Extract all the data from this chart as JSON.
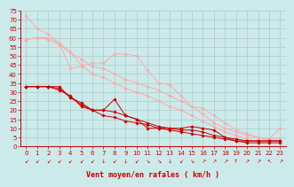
{
  "background_color": "#cceaea",
  "grid_color": "#aacccc",
  "xlabel": "Vent moyen/en rafales ( km/h )",
  "xlabel_color": "#cc0000",
  "xlabel_fontsize": 6,
  "tick_color": "#cc0000",
  "tick_fontsize": 5,
  "xlim": [
    -0.5,
    23.5
  ],
  "ylim": [
    0,
    75
  ],
  "yticks": [
    0,
    5,
    10,
    15,
    20,
    25,
    30,
    35,
    40,
    45,
    50,
    55,
    60,
    65,
    70,
    75
  ],
  "xticks": [
    0,
    1,
    2,
    3,
    4,
    5,
    6,
    7,
    8,
    9,
    10,
    11,
    12,
    13,
    14,
    15,
    16,
    17,
    18,
    19,
    20,
    21,
    22,
    23
  ],
  "series_light": [
    {
      "x": [
        0,
        1,
        2,
        3,
        4,
        5,
        6,
        7,
        8,
        9,
        10,
        11,
        12,
        13,
        14,
        15,
        16,
        17,
        18,
        19,
        20,
        21,
        22,
        23
      ],
      "y": [
        59,
        60,
        60,
        57,
        43,
        44,
        46,
        46,
        51,
        51,
        50,
        42,
        35,
        34,
        28,
        22,
        21,
        17,
        13,
        9,
        7,
        5,
        4,
        10
      ]
    },
    {
      "x": [
        0,
        1,
        2,
        3,
        4,
        5,
        6,
        7,
        8,
        9,
        10,
        11,
        12,
        13,
        14,
        15,
        16,
        17,
        18,
        19,
        20,
        21,
        22,
        23
      ],
      "y": [
        72,
        65,
        62,
        57,
        52,
        48,
        44,
        43,
        40,
        37,
        35,
        33,
        31,
        28,
        25,
        22,
        18,
        13,
        10,
        8,
        6,
        5,
        4,
        4
      ]
    },
    {
      "x": [
        0,
        1,
        2,
        3,
        4,
        5,
        6,
        7,
        8,
        9,
        10,
        11,
        12,
        13,
        14,
        15,
        16,
        17,
        18,
        19,
        20,
        21,
        22,
        23
      ],
      "y": [
        59,
        60,
        59,
        56,
        52,
        45,
        40,
        38,
        35,
        32,
        30,
        28,
        25,
        22,
        20,
        17,
        14,
        11,
        8,
        6,
        4,
        3,
        3,
        3
      ]
    }
  ],
  "series_dark": [
    {
      "x": [
        0,
        1,
        2,
        3,
        4,
        5,
        6,
        7,
        8,
        9,
        10,
        11,
        12,
        13,
        14,
        15,
        16,
        17,
        18,
        19,
        20,
        21,
        22,
        23
      ],
      "y": [
        33,
        33,
        33,
        33,
        27,
        24,
        20,
        20,
        26,
        17,
        15,
        10,
        10,
        10,
        10,
        11,
        10,
        9,
        5,
        3,
        3,
        3,
        3,
        3
      ]
    },
    {
      "x": [
        0,
        1,
        2,
        3,
        4,
        5,
        6,
        7,
        8,
        9,
        10,
        11,
        12,
        13,
        14,
        15,
        16,
        17,
        18,
        19,
        20,
        21,
        22,
        23
      ],
      "y": [
        33,
        33,
        33,
        31,
        28,
        22,
        20,
        20,
        19,
        17,
        15,
        13,
        11,
        10,
        9,
        9,
        8,
        6,
        5,
        4,
        3,
        3,
        3,
        3
      ]
    },
    {
      "x": [
        0,
        1,
        2,
        3,
        4,
        5,
        6,
        7,
        8,
        9,
        10,
        11,
        12,
        13,
        14,
        15,
        16,
        17,
        18,
        19,
        20,
        21,
        22,
        23
      ],
      "y": [
        33,
        33,
        33,
        32,
        27,
        23,
        20,
        17,
        16,
        14,
        13,
        12,
        10,
        9,
        8,
        7,
        6,
        5,
        4,
        3,
        2,
        2,
        2,
        2
      ]
    }
  ],
  "light_color": "#ffaaaa",
  "dark_color": "#cc0000",
  "marker": "D",
  "marker_size": 1.8,
  "linewidth": 0.7,
  "wind_arrows": [
    "↙",
    "↙",
    "↙",
    "↙",
    "↙",
    "↙",
    "↙",
    "↓",
    "↙",
    "↓",
    "↙",
    "↘",
    "↘",
    "↓",
    "↙",
    "↘",
    "↗",
    "↗",
    "↗",
    "↑",
    "↗",
    "↗",
    "↖",
    "↗"
  ]
}
